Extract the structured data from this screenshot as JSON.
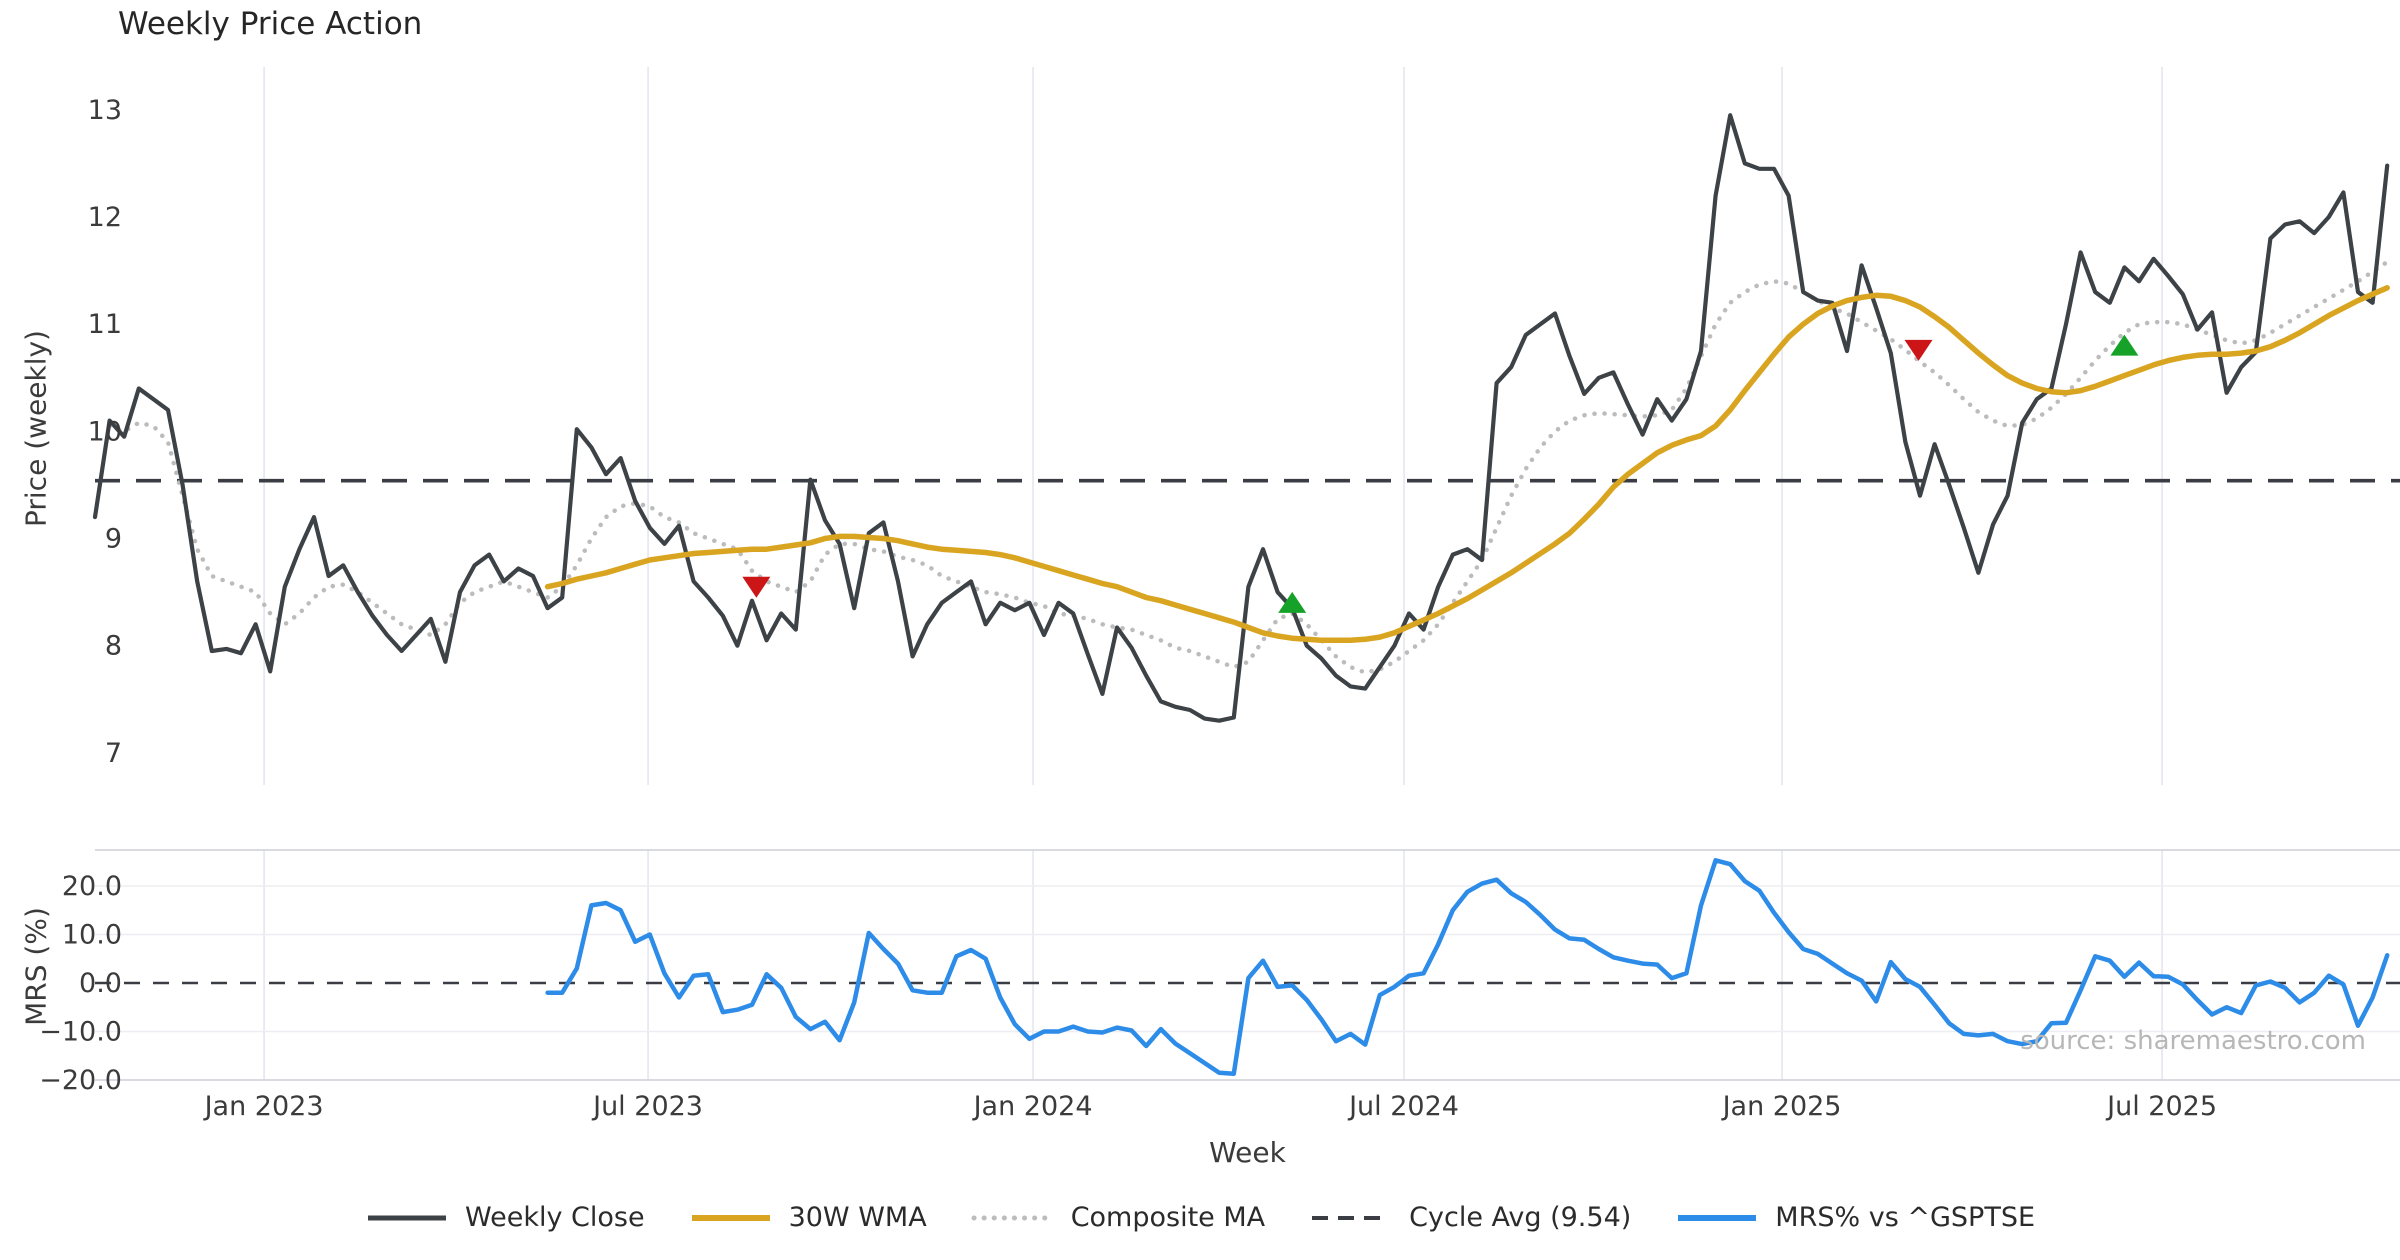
{
  "title": "Weekly Price Action",
  "source_note": "source: sharemaestro.com",
  "x_axis_label": "Week",
  "colors": {
    "close": "#3d4247",
    "wma": "#d9a521",
    "composite": "#bcbcbc",
    "dashed": "#3a3e44",
    "mrs": "#2d8ce8",
    "buy": "#16a228",
    "sell": "#cb1517",
    "grid_v": "#e8e8f0",
    "grid_h": "#ededf2",
    "spine": "#d5d5dd",
    "tick": "#3b3b3b",
    "title": "#262626",
    "source": "#b7b7b7"
  },
  "legend": {
    "items": [
      {
        "label": "Weekly Close",
        "swatch": "solid",
        "color_key": "close",
        "thickness": 5
      },
      {
        "label": "30W WMA",
        "swatch": "solid",
        "color_key": "wma",
        "thickness": 6
      },
      {
        "label": "Composite MA",
        "swatch": "dotted",
        "color_key": "composite",
        "thickness": 5
      },
      {
        "label": "Cycle Avg (9.54)",
        "swatch": "dashed",
        "color_key": "dashed",
        "thickness": 4
      },
      {
        "label": "MRS% vs ^GSPTSE",
        "swatch": "solid",
        "color_key": "mrs",
        "thickness": 6
      }
    ]
  },
  "chart_data": {
    "type": "line",
    "x_unit": "week_index",
    "x_ticks": [
      {
        "label": "Jan 2023",
        "week": 11.58
      },
      {
        "label": "Jul 2023",
        "week": 37.88
      },
      {
        "label": "Jan 2024",
        "week": 64.25
      },
      {
        "label": "Jul 2024",
        "week": 89.66
      },
      {
        "label": "Jan 2025",
        "week": 115.55
      },
      {
        "label": "Jul 2025",
        "week": 141.58
      }
    ],
    "panels": [
      {
        "name": "price",
        "ylabel": "Price (weekly)",
        "ylim": [
          6.7,
          13.4
        ],
        "yticks": [
          {
            "label": "13",
            "value": 13
          },
          {
            "label": "12",
            "value": 12
          },
          {
            "label": "11",
            "value": 11
          },
          {
            "label": "10",
            "value": 10
          },
          {
            "label": "9",
            "value": 9
          },
          {
            "label": "8",
            "value": 8
          },
          {
            "label": "7",
            "value": 7
          }
        ],
        "cycle_avg": 9.54,
        "series": [
          {
            "name": "Weekly Close",
            "color_key": "close",
            "style": "solid",
            "width": 4.2,
            "start_week": 0,
            "values": [
              9.2,
              10.1,
              9.95,
              10.4,
              10.3,
              10.2,
              9.5,
              8.6,
              7.95,
              7.97,
              7.93,
              8.2,
              7.76,
              8.55,
              8.9,
              9.2,
              8.65,
              8.75,
              8.5,
              8.28,
              8.1,
              7.95,
              8.1,
              8.25,
              7.85,
              8.5,
              8.75,
              8.85,
              8.6,
              8.72,
              8.65,
              8.35,
              8.45,
              10.02,
              9.85,
              9.6,
              9.75,
              9.35,
              9.1,
              8.95,
              9.12,
              8.6,
              8.45,
              8.28,
              8.0,
              8.42,
              8.05,
              8.3,
              8.15,
              9.55,
              9.17,
              8.95,
              8.35,
              9.05,
              9.15,
              8.6,
              7.9,
              8.2,
              8.4,
              8.5,
              8.6,
              8.2,
              8.4,
              8.33,
              8.4,
              8.1,
              8.4,
              8.3,
              7.92,
              7.55,
              8.17,
              7.98,
              7.72,
              7.48,
              7.43,
              7.4,
              7.32,
              7.3,
              7.33,
              8.55,
              8.9,
              8.5,
              8.35,
              8.0,
              7.88,
              7.72,
              7.62,
              7.6,
              7.8,
              8.0,
              8.3,
              8.15,
              8.55,
              8.85,
              8.9,
              8.8,
              10.45,
              10.6,
              10.9,
              11.0,
              11.1,
              10.7,
              10.35,
              10.5,
              10.55,
              10.25,
              9.97,
              10.3,
              10.1,
              10.3,
              10.75,
              12.2,
              12.95,
              12.5,
              12.45,
              12.45,
              12.2,
              11.3,
              11.22,
              11.2,
              10.75,
              11.55,
              11.15,
              10.73,
              9.9,
              9.4,
              9.88,
              9.5,
              9.1,
              8.68,
              9.13,
              9.4,
              10.08,
              10.3,
              10.4,
              11.0,
              11.67,
              11.3,
              11.2,
              11.53,
              11.4,
              11.61,
              11.45,
              11.28,
              10.95,
              11.11,
              10.36,
              10.6,
              10.74,
              11.8,
              11.93,
              11.96,
              11.85,
              12.0,
              12.23,
              11.3,
              11.2,
              12.48
            ]
          },
          {
            "name": "30W WMA",
            "color_key": "wma",
            "style": "solid",
            "width": 5.5,
            "start_week": 31,
            "values": [
              8.55,
              8.58,
              8.62,
              8.65,
              8.68,
              8.72,
              8.76,
              8.8,
              8.82,
              8.84,
              8.86,
              8.87,
              8.88,
              8.89,
              8.9,
              8.9,
              8.92,
              8.94,
              8.96,
              9.0,
              9.02,
              9.02,
              9.01,
              9.0,
              8.98,
              8.95,
              8.92,
              8.9,
              8.89,
              8.88,
              8.87,
              8.85,
              8.82,
              8.78,
              8.74,
              8.7,
              8.66,
              8.62,
              8.58,
              8.55,
              8.5,
              8.45,
              8.42,
              8.38,
              8.34,
              8.3,
              8.26,
              8.22,
              8.17,
              8.12,
              8.09,
              8.07,
              8.06,
              8.05,
              8.05,
              8.05,
              8.06,
              8.08,
              8.12,
              8.18,
              8.24,
              8.3,
              8.37,
              8.44,
              8.52,
              8.6,
              8.68,
              8.77,
              8.86,
              8.95,
              9.05,
              9.18,
              9.32,
              9.48,
              9.6,
              9.7,
              9.8,
              9.87,
              9.92,
              9.96,
              10.05,
              10.2,
              10.38,
              10.55,
              10.72,
              10.88,
              11.0,
              11.1,
              11.17,
              11.22,
              11.25,
              11.27,
              11.26,
              11.22,
              11.16,
              11.07,
              10.97,
              10.85,
              10.73,
              10.62,
              10.52,
              10.45,
              10.4,
              10.37,
              10.36,
              10.38,
              10.42,
              10.47,
              10.52,
              10.57,
              10.62,
              10.66,
              10.69,
              10.71,
              10.72,
              10.72,
              10.73,
              10.75,
              10.79,
              10.85,
              10.92,
              11.0,
              11.08,
              11.15,
              11.22,
              11.28,
              11.34
            ]
          },
          {
            "name": "Composite MA",
            "color_key": "composite",
            "style": "dotted",
            "width": 4.5,
            "start_week": 1,
            "values": [
              10.05,
              10.0,
              10.08,
              10.05,
              9.9,
              9.4,
              8.9,
              8.65,
              8.6,
              8.55,
              8.5,
              8.3,
              8.2,
              8.3,
              8.45,
              8.55,
              8.57,
              8.5,
              8.4,
              8.3,
              8.2,
              8.15,
              8.1,
              8.2,
              8.4,
              8.5,
              8.55,
              8.6,
              8.55,
              8.5,
              8.45,
              8.55,
              8.75,
              9.0,
              9.2,
              9.3,
              9.33,
              9.3,
              9.2,
              9.15,
              9.05,
              9.0,
              8.95,
              8.9,
              8.7,
              8.6,
              8.55,
              8.5,
              8.6,
              8.85,
              8.95,
              8.95,
              8.9,
              8.88,
              8.83,
              8.8,
              8.75,
              8.65,
              8.6,
              8.55,
              8.5,
              8.48,
              8.45,
              8.4,
              8.37,
              8.3,
              8.28,
              8.25,
              8.2,
              8.17,
              8.15,
              8.1,
              8.05,
              7.98,
              7.95,
              7.9,
              7.85,
              7.8,
              7.85,
              8.05,
              8.25,
              8.3,
              8.2,
              8.05,
              7.9,
              7.8,
              7.75,
              7.78,
              7.85,
              7.95,
              8.05,
              8.2,
              8.4,
              8.6,
              8.8,
              9.1,
              9.4,
              9.65,
              9.85,
              10.0,
              10.1,
              10.15,
              10.17,
              10.16,
              10.15,
              10.14,
              10.15,
              10.2,
              10.4,
              10.7,
              11.0,
              11.2,
              11.3,
              11.37,
              11.4,
              11.38,
              11.3,
              11.22,
              11.15,
              11.1,
              11.02,
              10.94,
              10.86,
              10.76,
              10.65,
              10.55,
              10.43,
              10.3,
              10.18,
              10.1,
              10.05,
              10.06,
              10.12,
              10.22,
              10.35,
              10.5,
              10.66,
              10.8,
              10.92,
              11.0,
              11.02,
              11.02,
              11.0,
              10.95,
              10.9,
              10.85,
              10.82,
              10.85,
              10.92,
              11.0,
              11.08,
              11.16,
              11.24,
              11.32,
              11.4,
              11.49,
              11.58
            ]
          }
        ],
        "signals": {
          "sell": [
            {
              "week": 45.3,
              "price": 8.55
            },
            {
              "week": 124.9,
              "price": 10.76
            }
          ],
          "buy": [
            {
              "week": 82.0,
              "price": 8.4
            },
            {
              "week": 139.0,
              "price": 10.8
            }
          ]
        }
      },
      {
        "name": "mrs",
        "ylabel": "MRS (%)",
        "ylim": [
          -20,
          27.42
        ],
        "yticks": [
          {
            "label": "20.0",
            "value": 20
          },
          {
            "label": "10.0",
            "value": 10
          },
          {
            "label": "0.0",
            "value": 0
          },
          {
            "label": "−10.0",
            "value": -10
          },
          {
            "label": "−20.0",
            "value": -20
          }
        ],
        "zero_line": 0,
        "series": [
          {
            "name": "MRS% vs ^GSPTSE",
            "color_key": "mrs",
            "style": "solid",
            "width": 4.5,
            "start_week": 31,
            "values": [
              -2,
              -2,
              3,
              16,
              16.5,
              15,
              8.5,
              10,
              2,
              -3,
              1.5,
              1.8,
              -6,
              -5.5,
              -4.5,
              1.8,
              -1,
              -7,
              -9.5,
              -8,
              -11.8,
              -4,
              10.3,
              7,
              4,
              -1.5,
              -2,
              -2,
              5.5,
              6.8,
              5,
              -3,
              -8.5,
              -11.5,
              -10,
              -10,
              -9,
              -10,
              -10.2,
              -9.2,
              -9.8,
              -13,
              -9.5,
              -12.5,
              -14.5,
              -16.5,
              -18.5,
              -18.7,
              1,
              4.6,
              -0.8,
              -0.5,
              -3.5,
              -7.5,
              -12,
              -10.5,
              -12.7,
              -2.5,
              -0.8,
              1.5,
              2,
              8,
              15,
              18.8,
              20.5,
              21.3,
              18.5,
              16.7,
              14,
              11,
              9.2,
              8.9,
              7,
              5.3,
              4.6,
              4,
              3.8,
              1,
              2,
              16,
              25.3,
              24.5,
              21,
              19,
              14.5,
              10.5,
              7,
              6,
              4,
              2,
              0.5,
              -3.8,
              4.3,
              0.8,
              -0.8,
              -4.5,
              -8.3,
              -10.5,
              -10.8,
              -10.5,
              -12,
              -12.6,
              -12,
              -8.3,
              -8.2,
              -1.5,
              5.5,
              4.6,
              1.3,
              4.2,
              1.4,
              1.3,
              -0.3,
              -3.5,
              -6.5,
              -5,
              -6.2,
              -0.5,
              0.3,
              -1,
              -4,
              -2,
              1.5,
              -0.3,
              -8.8,
              -3,
              5.7
            ]
          }
        ]
      }
    ]
  }
}
